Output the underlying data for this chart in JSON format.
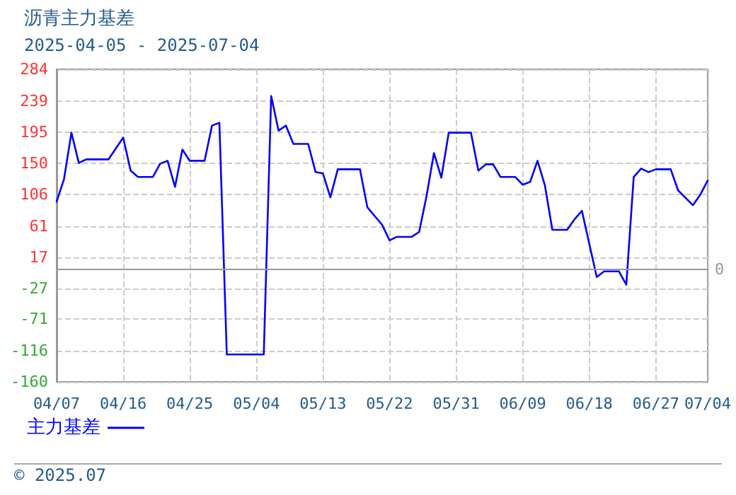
{
  "chart_data": {
    "type": "line",
    "title": "沥青主力基差",
    "subtitle": "2025-04-05 - 2025-07-04",
    "annotations": [
      "© 2025.07"
    ],
    "series": [
      {
        "name": "主力基差",
        "color": "#0000ff",
        "x": [
          "2025-04-07",
          "2025-04-08",
          "2025-04-09",
          "2025-04-10",
          "2025-04-11",
          "2025-04-14",
          "2025-04-16",
          "2025-04-17",
          "2025-04-18",
          "2025-04-20",
          "2025-04-21",
          "2025-04-22",
          "2025-04-23",
          "2025-04-24",
          "2025-04-25",
          "2025-04-27",
          "2025-04-28",
          "2025-04-29",
          "2025-04-30",
          "2025-05-05",
          "2025-05-06",
          "2025-05-07",
          "2025-05-08",
          "2025-05-09",
          "2025-05-11",
          "2025-05-12",
          "2025-05-13",
          "2025-05-14",
          "2025-05-15",
          "2025-05-18",
          "2025-05-19",
          "2025-05-21",
          "2025-05-22",
          "2025-05-23",
          "2025-05-25",
          "2025-05-26",
          "2025-05-27",
          "2025-05-28",
          "2025-05-29",
          "2025-05-30",
          "2025-06-02",
          "2025-06-03",
          "2025-06-04",
          "2025-06-05",
          "2025-06-06",
          "2025-06-08",
          "2025-06-09",
          "2025-06-10",
          "2025-06-11",
          "2025-06-12",
          "2025-06-13",
          "2025-06-15",
          "2025-06-16",
          "2025-06-17",
          "2025-06-19",
          "2025-06-20",
          "2025-06-22",
          "2025-06-23",
          "2025-06-24",
          "2025-06-25",
          "2025-06-26",
          "2025-06-27",
          "2025-06-29",
          "2025-06-30",
          "2025-07-02",
          "2025-07-03",
          "2025-07-04"
        ],
        "values": [
          96,
          128,
          194,
          151,
          156,
          156,
          187,
          140,
          131,
          131,
          150,
          154,
          117,
          170,
          154,
          154,
          204,
          208,
          -121,
          -121,
          246,
          197,
          204,
          178,
          178,
          138,
          136,
          102,
          142,
          142,
          88,
          63,
          41,
          46,
          46,
          53,
          104,
          165,
          130,
          194,
          194,
          140,
          149,
          149,
          131,
          131,
          120,
          124,
          154,
          119,
          56,
          56,
          71,
          83,
          -11,
          -3,
          -3,
          -22,
          131,
          143,
          138,
          142,
          142,
          112,
          91,
          106,
          126
        ]
      }
    ],
    "xlim": [
      "2025-04-07",
      "2025-07-04"
    ],
    "xticks": [
      {
        "value": "2025-04-07",
        "label": "04/07"
      },
      {
        "value": "2025-04-16",
        "label": "04/16"
      },
      {
        "value": "2025-04-25",
        "label": "04/25"
      },
      {
        "value": "2025-05-04",
        "label": "05/04"
      },
      {
        "value": "2025-05-13",
        "label": "05/13"
      },
      {
        "value": "2025-05-22",
        "label": "05/22"
      },
      {
        "value": "2025-05-31",
        "label": "05/31"
      },
      {
        "value": "2025-06-09",
        "label": "06/09"
      },
      {
        "value": "2025-06-18",
        "label": "06/18"
      },
      {
        "value": "2025-06-27",
        "label": "06/27"
      },
      {
        "value": "2025-07-04",
        "label": "07/04"
      }
    ],
    "ylim": [
      -160,
      284
    ],
    "yticks": [
      -160,
      -116,
      -71,
      -27,
      17,
      61,
      106,
      150,
      195,
      239,
      284
    ],
    "ref_lines": [
      {
        "axis": "y",
        "value": 0,
        "label": "0",
        "color": "#999999"
      }
    ],
    "grid": true,
    "legend": "bottom left",
    "marker": "none",
    "line_style": "solid"
  }
}
